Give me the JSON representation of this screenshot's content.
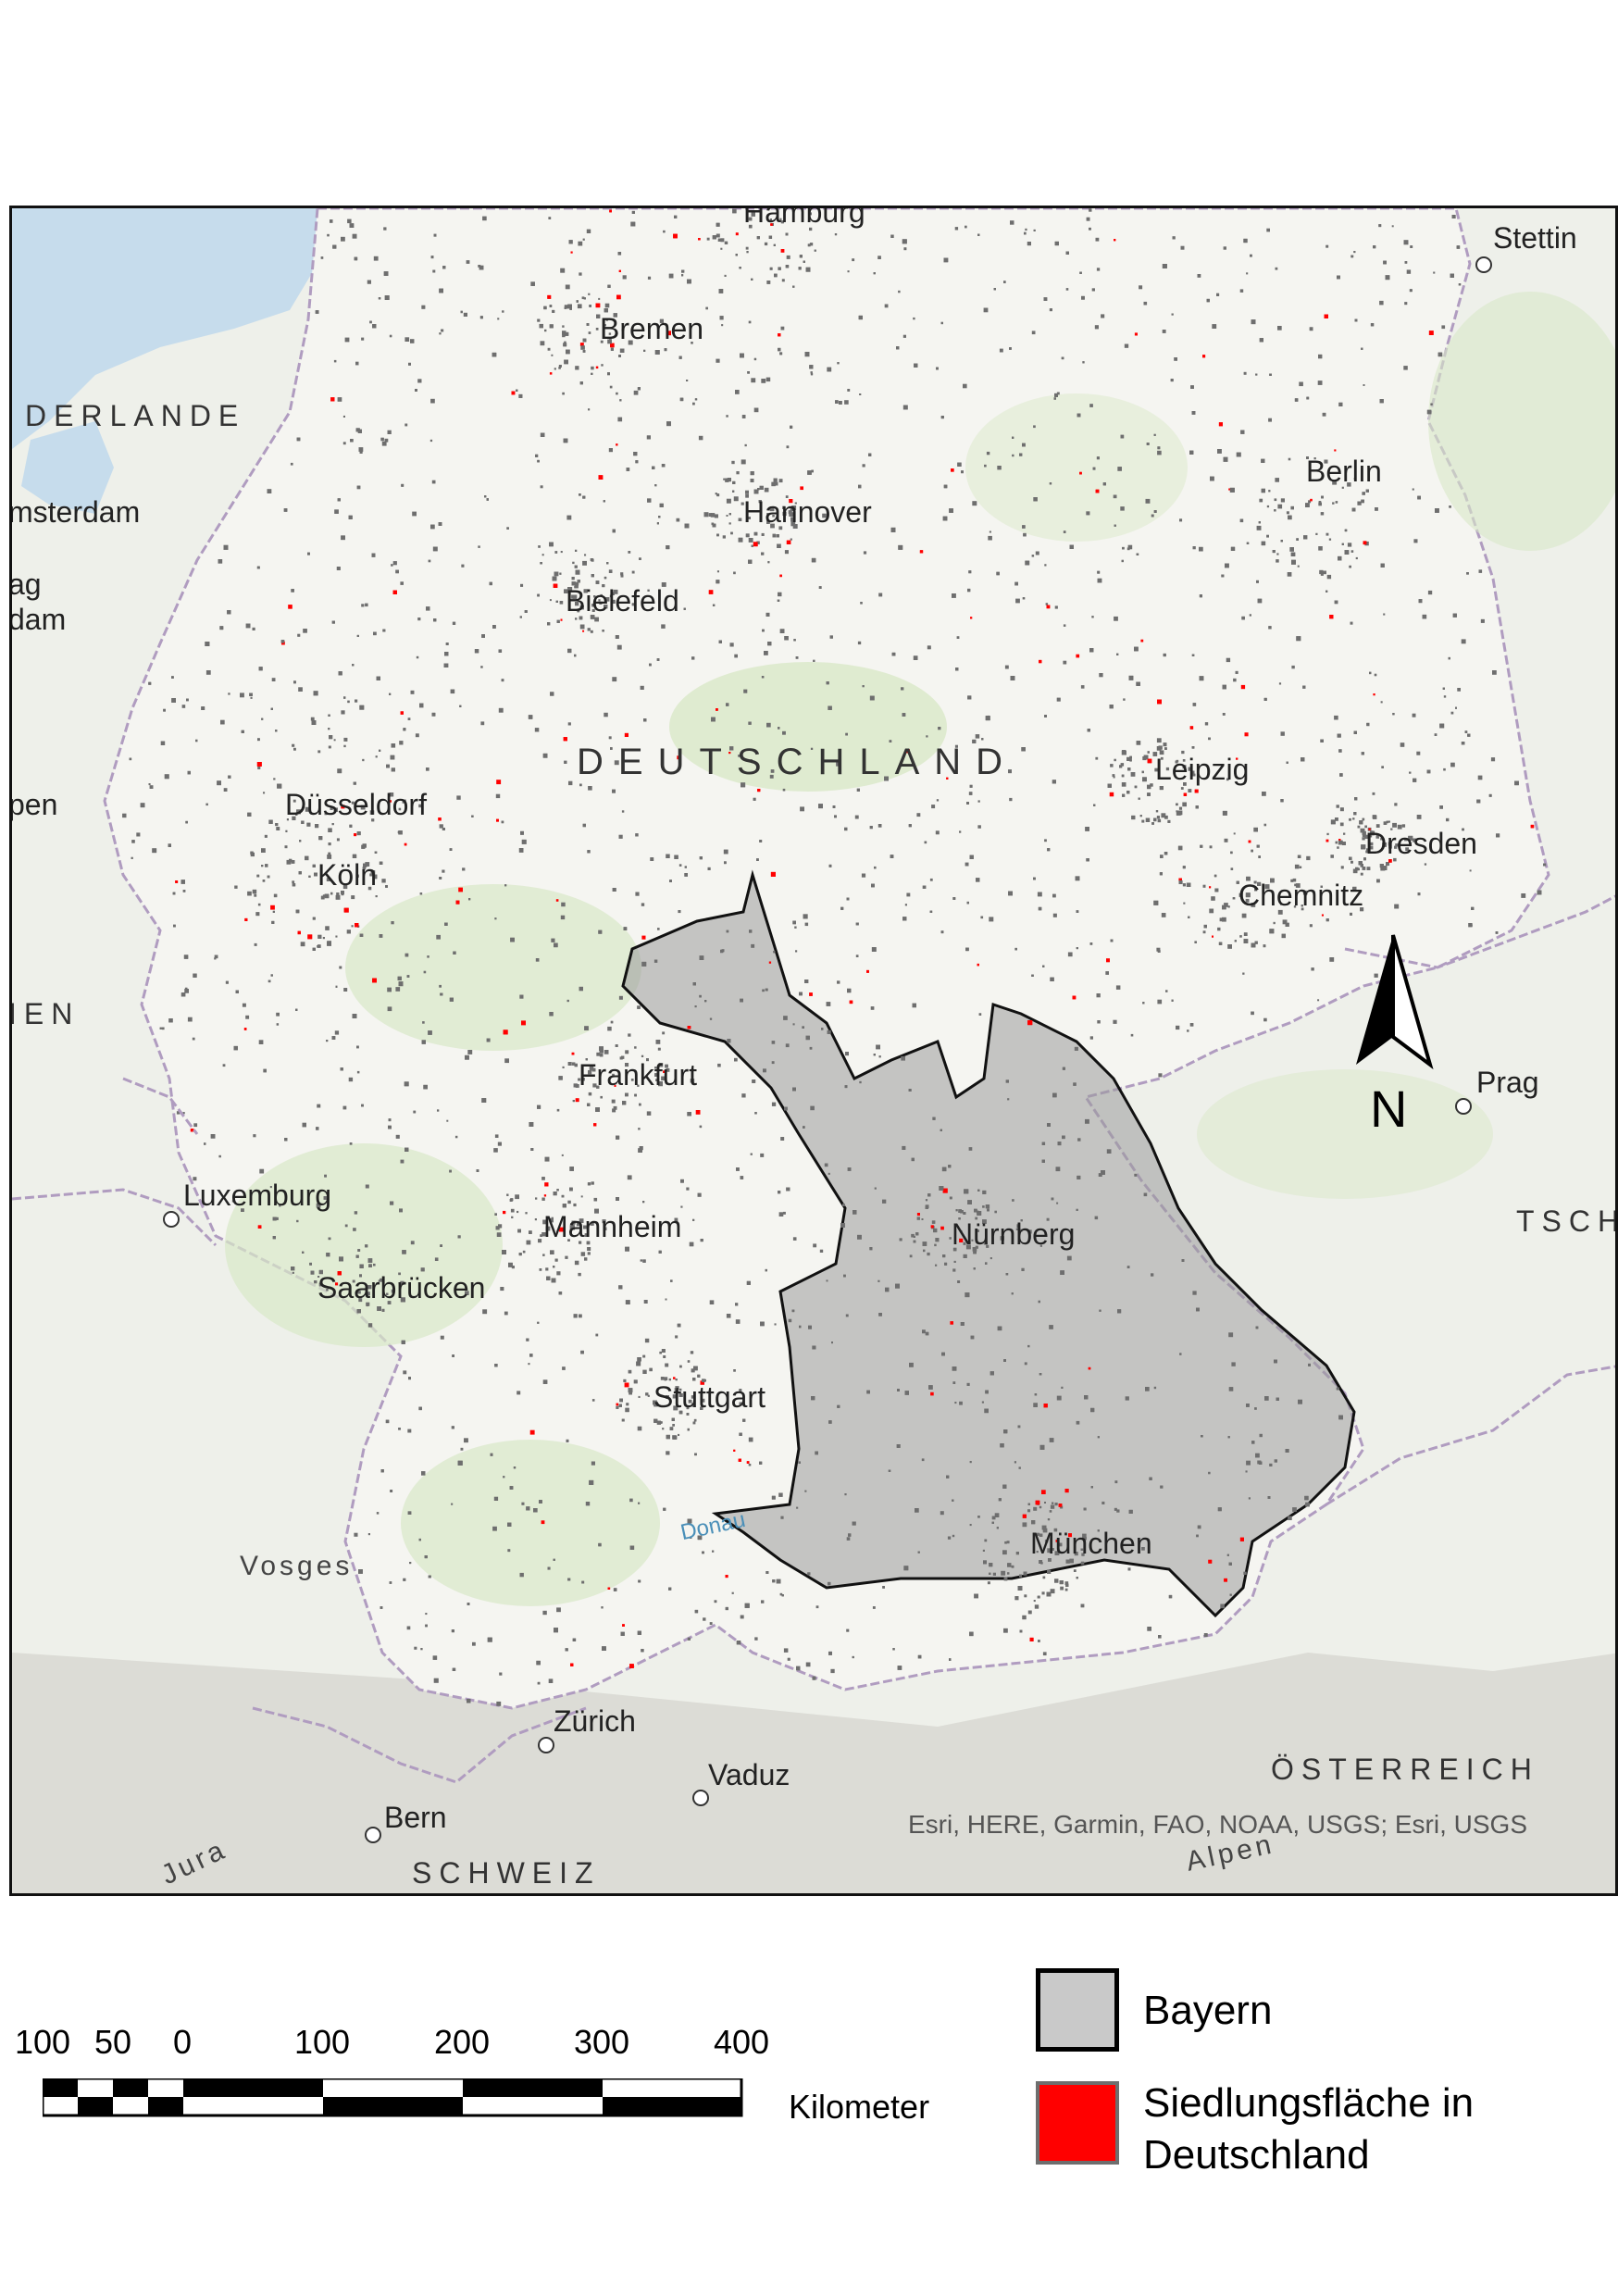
{
  "map": {
    "cities": [
      {
        "id": "hamburg",
        "label": "Hamburg"
      },
      {
        "id": "stettin",
        "label": "Stettin"
      },
      {
        "id": "bremen",
        "label": "Bremen"
      },
      {
        "id": "berlin",
        "label": "Berlin"
      },
      {
        "id": "amsterdam",
        "label": "msterdam"
      },
      {
        "id": "hannover",
        "label": "Hannover"
      },
      {
        "id": "denhaag",
        "label": "ag"
      },
      {
        "id": "rotterdam",
        "label": "dam"
      },
      {
        "id": "bielefeld",
        "label": "Bielefeld"
      },
      {
        "id": "leipzig",
        "label": "Leipzig"
      },
      {
        "id": "dusseldorf",
        "label": "Düsseldorf"
      },
      {
        "id": "antwerpen",
        "label": "pen"
      },
      {
        "id": "dresden",
        "label": "Dresden"
      },
      {
        "id": "koln",
        "label": "Köln"
      },
      {
        "id": "chemnitz",
        "label": "Chemnitz"
      },
      {
        "id": "frankfurt",
        "label": "Frankfurt"
      },
      {
        "id": "prag",
        "label": "Prag"
      },
      {
        "id": "luxemburg",
        "label": "Luxemburg"
      },
      {
        "id": "mannheim",
        "label": "Mannheim"
      },
      {
        "id": "nurnberg",
        "label": "Nürnberg"
      },
      {
        "id": "saarbrucken",
        "label": "Saarbrücken"
      },
      {
        "id": "stuttgart",
        "label": "Stuttgart"
      },
      {
        "id": "munchen",
        "label": "München"
      },
      {
        "id": "zurich",
        "label": "Zürich"
      },
      {
        "id": "vaduz",
        "label": "Vaduz"
      },
      {
        "id": "bern",
        "label": "Bern"
      }
    ],
    "countries": [
      {
        "id": "niederlande",
        "label": "DERLANDE"
      },
      {
        "id": "deutschland",
        "label": "DEUTSCHLAND"
      },
      {
        "id": "belgien",
        "label": "IEN"
      },
      {
        "id": "tschechien",
        "label": "TSCH"
      },
      {
        "id": "osterreich",
        "label": "ÖSTERREICH"
      },
      {
        "id": "schweiz",
        "label": "SCHWEIZ"
      }
    ],
    "regions": [
      {
        "id": "vosges",
        "label": "Vosges"
      },
      {
        "id": "jura",
        "label": "Jura"
      },
      {
        "id": "alpen",
        "label": "Alpen"
      }
    ],
    "rivers": [
      {
        "id": "donau",
        "label": "Donau"
      }
    ],
    "attribution": "Esri, HERE, Garmin, FAO, NOAA, USGS; Esri, USGS",
    "north_label": "N",
    "colors": {
      "bayern_fill": "#9a9a9a",
      "settlement": "#ff0000",
      "settlement_outline": "#6e6e6e",
      "water": "#c6dcec",
      "forest": "#d7e6c8",
      "basemap": "#f2f2ee"
    }
  },
  "scalebar": {
    "ticks": [
      "100",
      "50",
      "0",
      "100",
      "200",
      "300",
      "400"
    ],
    "unit": "Kilometer"
  },
  "legend": {
    "items": [
      {
        "label": "Bayern"
      },
      {
        "label": "Siedlungsfläche in Deutschland"
      }
    ]
  }
}
